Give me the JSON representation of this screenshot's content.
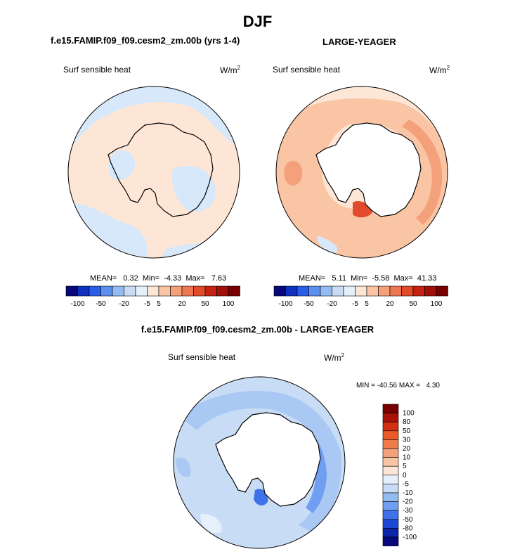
{
  "figure": {
    "title": "DJF",
    "panel_a": {
      "case": "f.e15.FAMIP.f09_f09.cesm2_zm.00b (yrs 1-4)",
      "variable": "Surf sensible heat",
      "units_base": "W/m",
      "units_exp": "2",
      "stats": "MEAN=   0.32  Min=  -4.33  Max=   7.63"
    },
    "panel_b": {
      "case": "LARGE-YEAGER",
      "variable": "Surf sensible heat",
      "units_base": "W/m",
      "units_exp": "2",
      "stats": "MEAN=   5.11  Min=  -5.58  Max=  41.33"
    },
    "panel_c": {
      "case": "f.e15.FAMIP.f09_f09.cesm2_zm.00b - LARGE-YEAGER",
      "variable": "Surf sensible heat",
      "units_base": "W/m",
      "units_exp": "2",
      "minmax": "MIN = -40.56 MAX =   4.30"
    }
  },
  "chart_data": [
    {
      "type": "heatmap",
      "projection": "south-polar-stereographic",
      "title": "f.e15.FAMIP.f09_f09.cesm2_zm.00b (yrs 1-4)",
      "variable": "Surf sensible heat",
      "units": "W/m2",
      "mean": 0.32,
      "min": -4.33,
      "max": 7.63,
      "colorbar_levels": [
        -100,
        -50,
        -20,
        -5,
        5,
        20,
        50,
        100
      ],
      "colorbar_colors": [
        "#08087a",
        "#0f30c0",
        "#2a5ee6",
        "#5b8ff0",
        "#93bdf2",
        "#c8dcf5",
        "#e6f0fa",
        "#fde6d5",
        "#f9c5a5",
        "#f4a07a",
        "#ee7650",
        "#e14a2a",
        "#c42313",
        "#a00f0a",
        "#780000"
      ]
    },
    {
      "type": "heatmap",
      "projection": "south-polar-stereographic",
      "title": "LARGE-YEAGER",
      "variable": "Surf sensible heat",
      "units": "W/m2",
      "mean": 5.11,
      "min": -5.58,
      "max": 41.33,
      "colorbar_levels": [
        -100,
        -50,
        -20,
        -5,
        5,
        20,
        50,
        100
      ],
      "colorbar_colors": [
        "#08087a",
        "#0f30c0",
        "#2a5ee6",
        "#5b8ff0",
        "#93bdf2",
        "#c8dcf5",
        "#e6f0fa",
        "#fde6d5",
        "#f9c5a5",
        "#f4a07a",
        "#ee7650",
        "#e14a2a",
        "#c42313",
        "#a00f0a",
        "#780000"
      ]
    },
    {
      "type": "heatmap",
      "projection": "south-polar-stereographic",
      "title": "f.e15.FAMIP.f09_f09.cesm2_zm.00b - LARGE-YEAGER",
      "variable": "Surf sensible heat",
      "units": "W/m2",
      "min": -40.56,
      "max": 4.3,
      "colorbar_orientation": "vertical",
      "colorbar_levels": [
        100,
        80,
        50,
        30,
        20,
        10,
        5,
        0,
        -5,
        -10,
        -20,
        -30,
        -50,
        -80,
        -100
      ],
      "colorbar_colors": [
        "#780000",
        "#a81208",
        "#d0300f",
        "#ea5a28",
        "#f07a4a",
        "#f4a07a",
        "#f9c5a5",
        "#fde6d5",
        "#e6f0fa",
        "#c8dcf5",
        "#93bdf2",
        "#6f9ef2",
        "#3f72ea",
        "#1c48d4",
        "#0d25a8",
        "#08087a"
      ]
    }
  ]
}
